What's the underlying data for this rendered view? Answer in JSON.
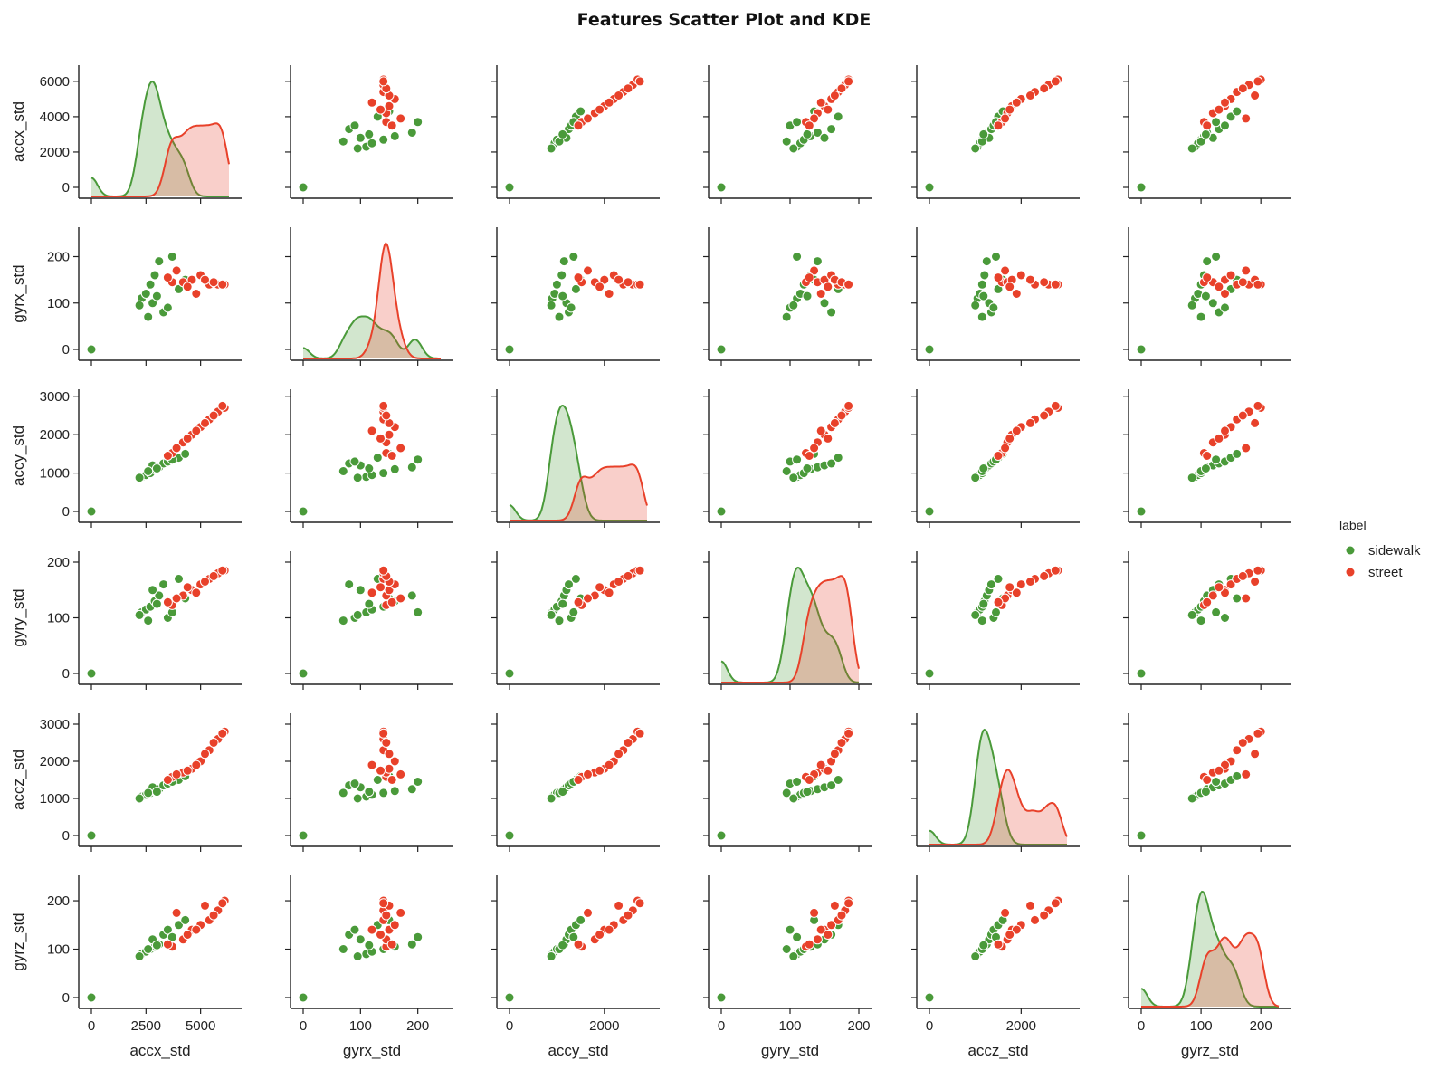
{
  "title": "Features Scatter Plot and KDE",
  "legend": {
    "title": "label",
    "entries": [
      {
        "name": "sidewalk",
        "color": "#4a9a3a"
      },
      {
        "name": "street",
        "color": "#e8412a"
      }
    ]
  },
  "chart_data": {
    "type": "scatter",
    "layout": "pairplot",
    "diagonal": "kde",
    "grid": false,
    "legend_position": "right",
    "features": [
      {
        "name": "accx_std",
        "range": [
          0,
          6300
        ],
        "ticks": [
          0,
          2500,
          5000
        ],
        "tick_labels": [
          "0",
          "2500",
          "5000"
        ],
        "left_ticks": [
          0,
          2000,
          4000,
          6000
        ],
        "left_tick_labels": [
          "0",
          "2000",
          "4000",
          "6000"
        ]
      },
      {
        "name": "gyrx_std",
        "range": [
          0,
          240
        ],
        "ticks": [
          0,
          100,
          200
        ],
        "tick_labels": [
          "0",
          "100",
          "200"
        ],
        "left_ticks": [
          0,
          100,
          200
        ],
        "left_tick_labels": [
          "0",
          "100",
          "200"
        ]
      },
      {
        "name": "accy_std",
        "range": [
          0,
          2900
        ],
        "ticks": [
          0,
          2000
        ],
        "tick_labels": [
          "0",
          "2000"
        ],
        "left_ticks": [
          0,
          1000,
          2000,
          3000
        ],
        "left_tick_labels": [
          "0",
          "1000",
          "2000",
          "3000"
        ]
      },
      {
        "name": "gyry_std",
        "range": [
          0,
          200
        ],
        "ticks": [
          0,
          100,
          200
        ],
        "tick_labels": [
          "0",
          "100",
          "200"
        ],
        "left_ticks": [
          0,
          100,
          200
        ],
        "left_tick_labels": [
          "0",
          "100",
          "200"
        ]
      },
      {
        "name": "accz_std",
        "range": [
          0,
          3000
        ],
        "ticks": [
          0,
          2000
        ],
        "tick_labels": [
          "0",
          "2000"
        ],
        "left_ticks": [
          0,
          1000,
          2000,
          3000
        ],
        "left_tick_labels": [
          "0",
          "1000",
          "2000",
          "3000"
        ]
      },
      {
        "name": "gyrz_std",
        "range": [
          0,
          230
        ],
        "ticks": [
          0,
          100,
          200
        ],
        "tick_labels": [
          "0",
          "100",
          "200"
        ],
        "left_ticks": [
          0,
          100,
          200
        ],
        "left_tick_labels": [
          "0",
          "100",
          "200"
        ]
      }
    ],
    "series": [
      {
        "name": "sidewalk",
        "color": "#4a9a3a",
        "points": [
          [
            0,
            0,
            0,
            0,
            0,
            0
          ],
          [
            2300,
            110,
            900,
            110,
            1050,
            90
          ],
          [
            2500,
            120,
            950,
            115,
            1100,
            95
          ],
          [
            2700,
            140,
            1000,
            120,
            1150,
            100
          ],
          [
            2900,
            160,
            1100,
            130,
            1200,
            105
          ],
          [
            3100,
            190,
            1150,
            140,
            1250,
            110
          ],
          [
            2800,
            100,
            1200,
            150,
            1300,
            120
          ],
          [
            3300,
            80,
            1250,
            160,
            1350,
            130
          ],
          [
            3500,
            90,
            1300,
            100,
            1400,
            140
          ],
          [
            2600,
            70,
            1050,
            95,
            1150,
            100
          ],
          [
            4000,
            130,
            1400,
            170,
            1500,
            150
          ],
          [
            4300,
            150,
            1500,
            135,
            1600,
            160
          ],
          [
            3700,
            200,
            1350,
            110,
            1450,
            125
          ],
          [
            2200,
            95,
            880,
            105,
            1000,
            85
          ],
          [
            3000,
            115,
            1120,
            125,
            1180,
            108
          ]
        ]
      },
      {
        "name": "street",
        "color": "#e8412a",
        "points": [
          [
            3700,
            145,
            1520,
            123,
            1580,
            105
          ],
          [
            4200,
            145,
            1800,
            140,
            1700,
            120
          ],
          [
            4600,
            150,
            2000,
            150,
            1800,
            140
          ],
          [
            5000,
            160,
            2200,
            160,
            2000,
            150
          ],
          [
            5400,
            140,
            2400,
            170,
            2300,
            160
          ],
          [
            5800,
            140,
            2600,
            180,
            2600,
            180
          ],
          [
            6100,
            140,
            2700,
            185,
            2800,
            200
          ],
          [
            4800,
            120,
            2100,
            145,
            1900,
            140
          ],
          [
            3900,
            170,
            1650,
            135,
            1650,
            175
          ],
          [
            5200,
            150,
            2300,
            165,
            2200,
            190
          ],
          [
            4400,
            135,
            1900,
            155,
            1750,
            130
          ],
          [
            5600,
            145,
            2500,
            175,
            2500,
            170
          ],
          [
            3500,
            155,
            1450,
            128,
            1500,
            110
          ],
          [
            6000,
            140,
            2750,
            185,
            2750,
            195
          ]
        ]
      }
    ]
  }
}
